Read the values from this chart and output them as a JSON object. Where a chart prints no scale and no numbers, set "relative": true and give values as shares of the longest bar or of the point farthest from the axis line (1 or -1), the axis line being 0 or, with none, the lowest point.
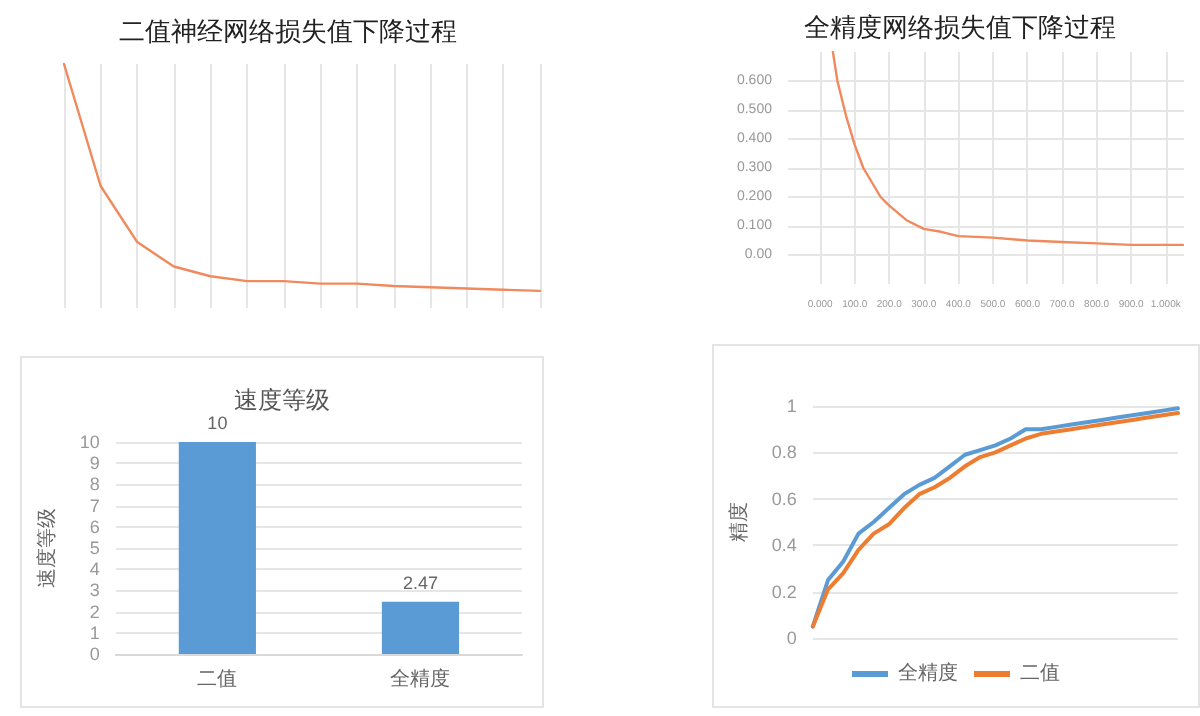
{
  "chart_data": [
    {
      "type": "line",
      "title": "二值神经网络损失值下降过程",
      "relative": true,
      "grid": true,
      "marker": "none",
      "categories": [
        null,
        null,
        null,
        null,
        null,
        null,
        null,
        null,
        null,
        null,
        null,
        null,
        null,
        null
      ],
      "series": [
        {
          "color": "#f08a5d",
          "values": [
            1.0,
            0.5,
            0.27,
            0.17,
            0.13,
            0.11,
            0.11,
            0.1,
            0.1,
            0.09,
            0.085,
            0.08,
            0.075,
            0.07
          ]
        }
      ]
    },
    {
      "type": "line",
      "title": "全精度网络损失值下降过程",
      "grid": true,
      "marker": "none",
      "xlim": [
        -93,
        1053
      ],
      "ylim": [
        -0.1,
        0.7
      ],
      "xticks": [
        {
          "value": 0,
          "label": "0.000"
        },
        {
          "value": 100,
          "label": "100.0"
        },
        {
          "value": 200,
          "label": "200.0"
        },
        {
          "value": 300,
          "label": "300.0"
        },
        {
          "value": 400,
          "label": "400.0"
        },
        {
          "value": 500,
          "label": "500.0"
        },
        {
          "value": 600,
          "label": "600.0"
        },
        {
          "value": 700,
          "label": "700.0"
        },
        {
          "value": 800,
          "label": "800.0"
        },
        {
          "value": 900,
          "label": "900.0"
        },
        {
          "value": 1000,
          "label": "1.000k"
        }
      ],
      "yticks": [
        {
          "value": 0,
          "label": "0.00"
        },
        {
          "value": 0.1,
          "label": "0.100"
        },
        {
          "value": 0.2,
          "label": "0.200"
        },
        {
          "value": 0.3,
          "label": "0.300"
        },
        {
          "value": 0.4,
          "label": "0.400"
        },
        {
          "value": 0.5,
          "label": "0.500"
        },
        {
          "value": 0.6,
          "label": "0.600"
        }
      ],
      "x": [
        37,
        50,
        75,
        100,
        125,
        150,
        175,
        200,
        250,
        300,
        350,
        400,
        500,
        600,
        700,
        800,
        900,
        1000,
        1050
      ],
      "series": [
        {
          "color": "#f08a5d",
          "values": [
            0.7,
            0.6,
            0.48,
            0.38,
            0.3,
            0.25,
            0.2,
            0.17,
            0.12,
            0.09,
            0.08,
            0.065,
            0.06,
            0.05,
            0.045,
            0.04,
            0.035,
            0.035,
            0.035
          ]
        }
      ]
    },
    {
      "type": "bar",
      "title": "速度等级",
      "ylabel": "速度等级",
      "categories": [
        "二值",
        "全精度"
      ],
      "values": [
        10,
        2.47
      ],
      "color": "#5b9bd5",
      "ylim": [
        0,
        10
      ],
      "yticks": [
        0,
        1,
        2,
        3,
        4,
        5,
        6,
        7,
        8,
        9,
        10
      ],
      "grid": "y",
      "data_labels": true
    },
    {
      "type": "line",
      "ylabel": "精度",
      "ylim": [
        0,
        1
      ],
      "yticks": [
        0,
        0.2,
        0.4,
        0.6,
        0.8,
        1
      ],
      "grid": "y",
      "legend": "bottom",
      "marker": "none",
      "categories": [
        null,
        null,
        null,
        null,
        null,
        null,
        null,
        null,
        null,
        null,
        null,
        null,
        null,
        null,
        null,
        null,
        null,
        null,
        null,
        null,
        null,
        null,
        null,
        null,
        null
      ],
      "series": [
        {
          "name": "全精度",
          "color": "#5b9bd5",
          "values": [
            0.05,
            0.25,
            0.33,
            0.45,
            0.5,
            0.56,
            0.62,
            0.66,
            0.69,
            0.74,
            0.79,
            0.81,
            0.83,
            0.86,
            0.9,
            0.9,
            0.91,
            0.92,
            0.93,
            0.94,
            0.95,
            0.96,
            0.97,
            0.98,
            0.99
          ]
        },
        {
          "name": "二值",
          "color": "#ed7d31",
          "values": [
            0.05,
            0.21,
            0.28,
            0.38,
            0.45,
            0.49,
            0.56,
            0.62,
            0.65,
            0.69,
            0.74,
            0.78,
            0.8,
            0.83,
            0.86,
            0.88,
            0.89,
            0.9,
            0.91,
            0.92,
            0.93,
            0.94,
            0.95,
            0.96,
            0.97
          ]
        }
      ]
    }
  ]
}
